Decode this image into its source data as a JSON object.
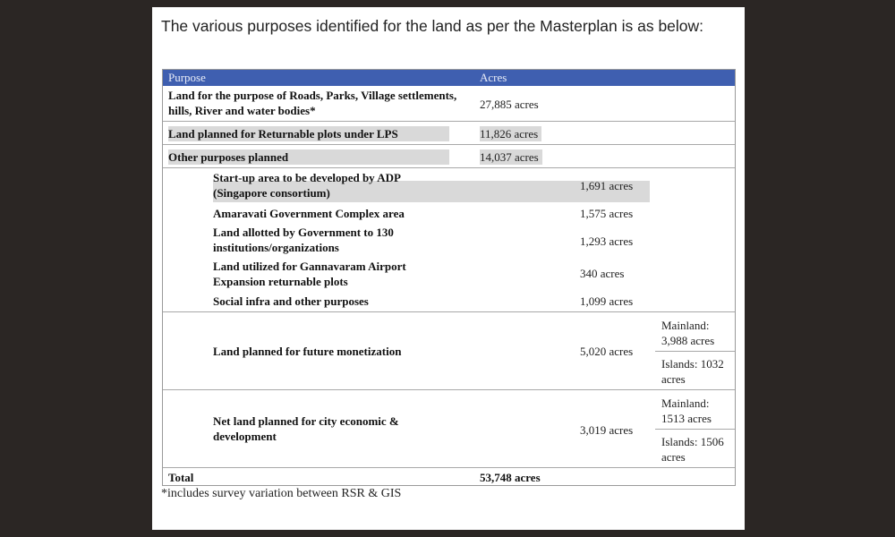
{
  "intro": "The various purposes identified for the land as per the Masterplan is as below:",
  "table": {
    "headers": {
      "purpose": "Purpose",
      "acres": "Acres"
    },
    "rows": [
      {
        "purpose": "Land for the purpose of Roads, Parks, Village settlements, hills, River and water bodies*",
        "acres": "27,885 acres"
      },
      {
        "purpose": "Land planned for Returnable plots under LPS",
        "acres": "11,826 acres"
      },
      {
        "purpose": "Other purposes planned",
        "acres": "14,037 acres"
      }
    ],
    "sub_rows": [
      {
        "purpose": "Start-up area to be developed by ADP (Singapore consortium)",
        "acres": "1,691 acres"
      },
      {
        "purpose": "Amaravati Government Complex area",
        "acres": "1,575 acres"
      },
      {
        "purpose": "Land allotted by Government to 130 institutions/organizations",
        "acres": "1,293 acres"
      },
      {
        "purpose": "Land utilized for Gannavaram Airport Expansion returnable plots",
        "acres": "340 acres"
      },
      {
        "purpose": "Social infra and other purposes",
        "acres": "1,099 acres"
      },
      {
        "purpose": "Land planned  for future monetization",
        "acres": "5,020 acres",
        "mainland": "Mainland: 3,988 acres",
        "islands": "Islands: 1032 acres"
      },
      {
        "purpose": "Net land planned  for city economic & development",
        "acres": "3,019 acres",
        "mainland": "Mainland: 1513 acres",
        "islands": "Islands: 1506 acres"
      }
    ],
    "total": {
      "label": "Total",
      "acres": "53,748 acres"
    }
  },
  "footnote": "*includes survey variation between RSR & GIS",
  "colors": {
    "header": "#3f5fb0",
    "highlight": "#d9d9d9",
    "background": "#2b2624"
  }
}
